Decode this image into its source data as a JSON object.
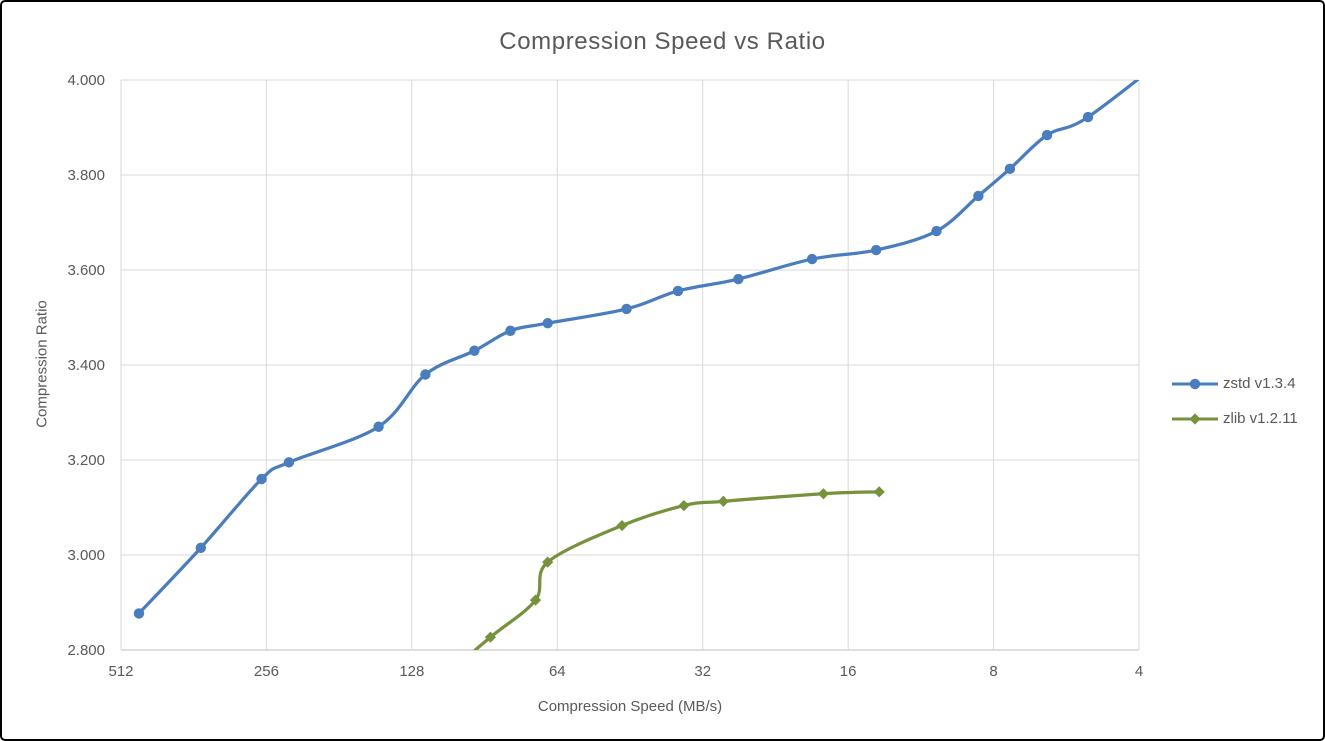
{
  "window": {
    "background": "#FFFFFF",
    "border_color": "#000000"
  },
  "chart_data": {
    "type": "line",
    "title": "Compression Speed vs Ratio",
    "xlabel": "Compression Speed (MB/s)",
    "ylabel": "Compression Ratio",
    "x_scale": "log2_reversed",
    "x_range": [
      512,
      4
    ],
    "x_ticks": [
      "512",
      "256",
      "128",
      "64",
      "32",
      "16",
      "8",
      "4"
    ],
    "ylim": [
      2.8,
      4.0
    ],
    "y_ticks": [
      4.0,
      3.8,
      3.6,
      3.4,
      3.2,
      3.0,
      2.8
    ],
    "y_tick_labels": [
      "4.000",
      "3.800",
      "3.600",
      "3.400",
      "3.200",
      "3.000",
      "2.800"
    ],
    "grid": true,
    "legend_position": "right",
    "text_color": "#595959",
    "gridline_color": "#D9D9D9",
    "axis_line_color": "#BFBFBF",
    "series": [
      {
        "name": "zstd v1.3.4",
        "color": "#4A7DBD",
        "marker": "circle",
        "smooth": true,
        "points": [
          [
            470,
            2.877
          ],
          [
            350,
            3.015
          ],
          [
            262,
            3.16
          ],
          [
            230,
            3.195
          ],
          [
            150,
            3.27
          ],
          [
            120,
            3.38
          ],
          [
            95,
            3.43
          ],
          [
            80,
            3.472
          ],
          [
            67,
            3.488
          ],
          [
            46,
            3.518
          ],
          [
            36,
            3.556
          ],
          [
            27,
            3.581
          ],
          [
            19,
            3.623
          ],
          [
            14,
            3.642
          ],
          [
            10.5,
            3.682
          ],
          [
            8.6,
            3.756
          ],
          [
            7.4,
            3.813
          ],
          [
            6.2,
            3.884
          ],
          [
            5.1,
            3.922
          ],
          [
            3.3,
            4.07
          ]
        ]
      },
      {
        "name": "zlib v1.2.11",
        "color": "#76923C",
        "marker": "diamond",
        "smooth": true,
        "points": [
          [
            110,
            2.743
          ],
          [
            88,
            2.827
          ],
          [
            71,
            2.905
          ],
          [
            67,
            2.985
          ],
          [
            47,
            3.062
          ],
          [
            35,
            3.104
          ],
          [
            29,
            3.113
          ],
          [
            18,
            3.129
          ],
          [
            13.8,
            3.133
          ]
        ]
      }
    ]
  }
}
